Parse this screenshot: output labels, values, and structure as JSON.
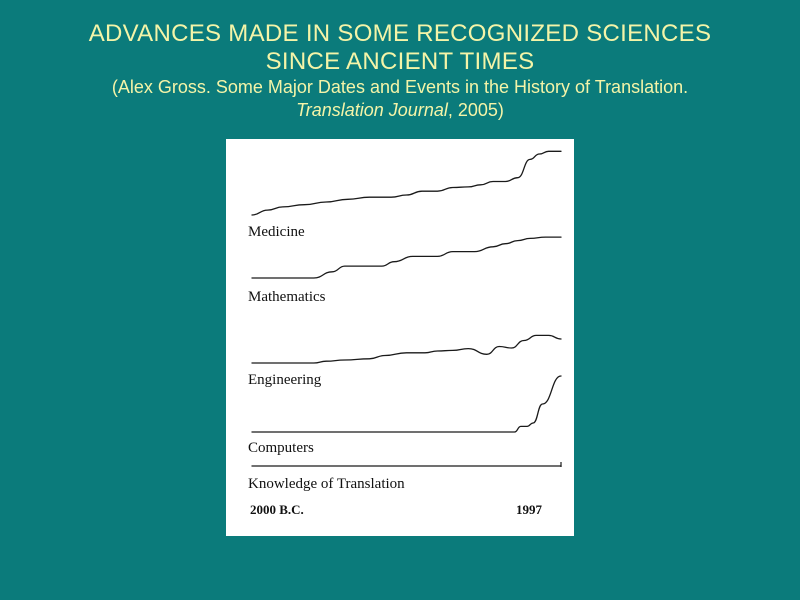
{
  "slide": {
    "title_line1": "ADVANCES MADE IN SOME RECOGNIZED SCIENCES",
    "title_line2": "SINCE ANCIENT TIMES",
    "citation_prefix": "(Alex Gross. Some Major Dates and Events in the History of Translation.",
    "citation_journal": "Translation Journal",
    "citation_suffix": ", 2005)"
  },
  "colors": {
    "background": "#0b7b7b",
    "title_text": "#f4f4a8",
    "figure_background": "#ffffff",
    "line": "#1a1a1a"
  },
  "chart_data": {
    "type": "line",
    "title": "",
    "x_start_label": "2000 B.C.",
    "x_end_label": "1997",
    "grid": false,
    "legend": "none",
    "series": [
      {
        "name": "Medicine",
        "x": [
          0,
          0.05,
          0.1,
          0.17,
          0.24,
          0.31,
          0.38,
          0.45,
          0.5,
          0.55,
          0.6,
          0.65,
          0.7,
          0.74,
          0.78,
          0.82,
          0.86,
          0.9,
          0.93,
          0.96,
          1.0
        ],
        "y": [
          0.0,
          0.09,
          0.15,
          0.19,
          0.24,
          0.29,
          0.33,
          0.33,
          0.37,
          0.44,
          0.44,
          0.51,
          0.52,
          0.56,
          0.62,
          0.62,
          0.69,
          1.03,
          1.13,
          1.18,
          1.18
        ]
      },
      {
        "name": "Mathematics",
        "x": [
          0,
          0.1,
          0.2,
          0.26,
          0.3,
          0.36,
          0.42,
          0.46,
          0.52,
          0.6,
          0.65,
          0.72,
          0.78,
          0.82,
          0.86,
          0.9,
          0.95,
          1.0
        ],
        "y": [
          0.0,
          0.0,
          0.0,
          0.14,
          0.27,
          0.27,
          0.27,
          0.37,
          0.49,
          0.49,
          0.6,
          0.6,
          0.71,
          0.78,
          0.85,
          0.9,
          0.93,
          0.93
        ]
      },
      {
        "name": "Engineering",
        "x": [
          0,
          0.2,
          0.24,
          0.3,
          0.38,
          0.43,
          0.5,
          0.56,
          0.6,
          0.65,
          0.7,
          0.76,
          0.8,
          0.84,
          0.88,
          0.92,
          0.96,
          1.0
        ],
        "y": [
          0.0,
          0.0,
          0.06,
          0.1,
          0.14,
          0.25,
          0.34,
          0.34,
          0.4,
          0.42,
          0.48,
          0.29,
          0.55,
          0.5,
          0.75,
          0.92,
          0.92,
          0.8
        ]
      },
      {
        "name": "Computers",
        "x": [
          0,
          0.3,
          0.6,
          0.85,
          0.87,
          0.89,
          0.91,
          0.94,
          1.0
        ],
        "y": [
          0.0,
          0.0,
          0.0,
          0.0,
          0.1,
          0.1,
          0.16,
          0.5,
          1.0
        ]
      },
      {
        "name": "Knowledge of Translation",
        "x": [
          0,
          0.5,
          1.0
        ],
        "y": [
          0.0,
          0.0,
          0.0
        ]
      }
    ]
  }
}
